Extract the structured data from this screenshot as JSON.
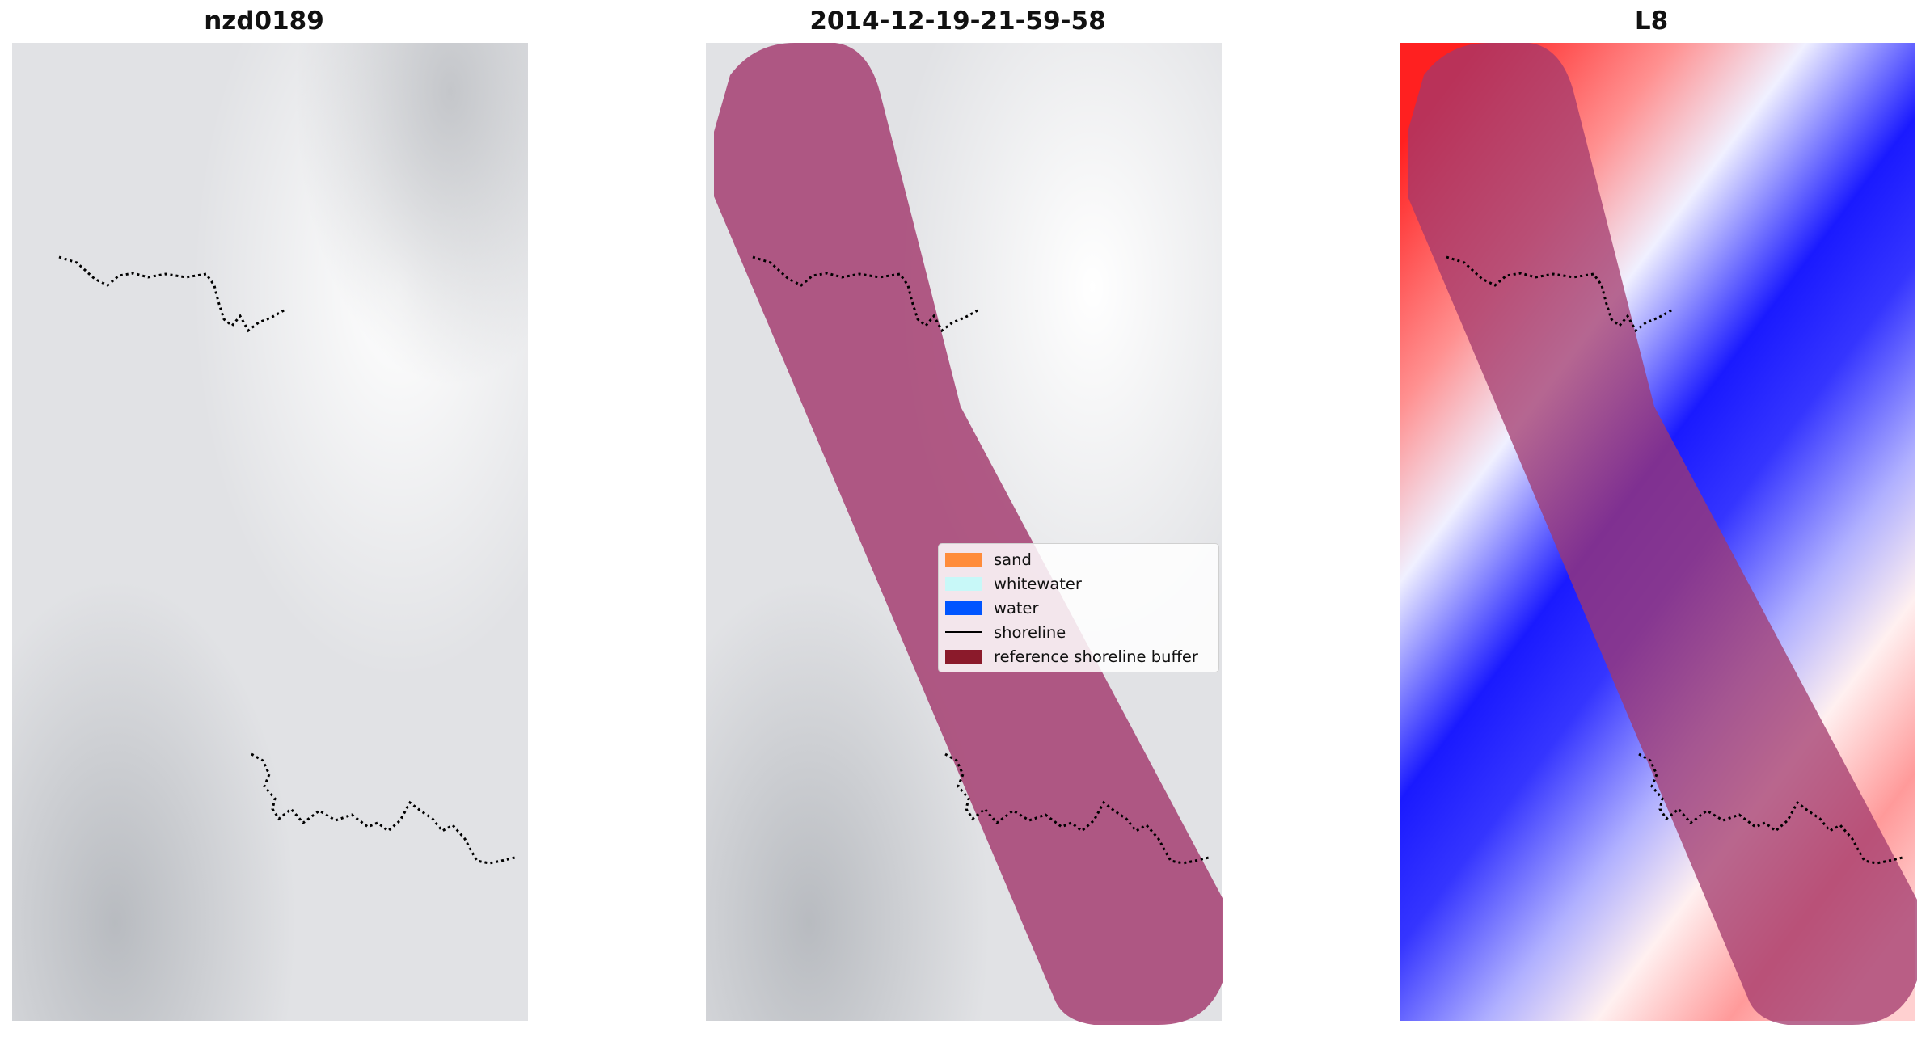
{
  "panels": [
    {
      "title": "nzd0189"
    },
    {
      "title": "2014-12-19-21-59-58"
    },
    {
      "title": "L8"
    }
  ],
  "legend": {
    "items": [
      {
        "label": "sand",
        "color": "#ff8c3b",
        "kind": "patch"
      },
      {
        "label": "whitewater",
        "color": "#c8f8f8",
        "kind": "patch"
      },
      {
        "label": "water",
        "color": "#0055ff",
        "kind": "patch"
      },
      {
        "label": "shoreline",
        "color": "#000000",
        "kind": "line"
      },
      {
        "label": "reference shoreline buffer",
        "color": "#8b1a2b",
        "kind": "patch"
      }
    ]
  },
  "colors": {
    "buffer_overlay": "#a2386c",
    "gray_background": "#dcdde0",
    "index_positive": "#ff0000",
    "index_negative": "#0000ff"
  }
}
